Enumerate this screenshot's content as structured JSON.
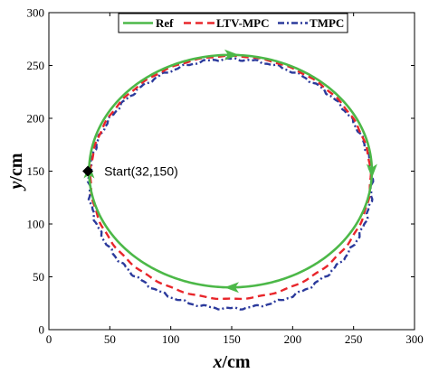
{
  "chart_data": {
    "type": "line",
    "xlabel_var": "x",
    "xlabel_unit": "/cm",
    "ylabel_var": "y",
    "ylabel_unit": "/cm",
    "xlim": [
      0,
      300
    ],
    "ylim": [
      0,
      300
    ],
    "xticks": [
      "0",
      "50",
      "100",
      "150",
      "200",
      "250",
      "300"
    ],
    "yticks": [
      "0",
      "50",
      "100",
      "150",
      "200",
      "250",
      "300"
    ],
    "grid": false,
    "legend_position": "top-center",
    "series": [
      {
        "name": "Ref",
        "color": "#4cb848",
        "style": "solid",
        "shape": "ellipse",
        "center": [
          149,
          150
        ],
        "radii": [
          116,
          110
        ]
      },
      {
        "name": "LTV-MPC",
        "color": "#e8262b",
        "style": "dashed",
        "shape": "ellipse",
        "center": [
          149,
          144
        ],
        "radii": [
          115,
          115
        ]
      },
      {
        "name": "TMPC",
        "color": "#2b3a9c",
        "style": "dashdot",
        "shape": "ellipse",
        "center": [
          149,
          138
        ],
        "radii": [
          116,
          118
        ]
      }
    ],
    "direction_arrows": [
      {
        "x": 150,
        "y": 260,
        "dir": "right"
      },
      {
        "x": 265,
        "y": 150,
        "dir": "down"
      },
      {
        "x": 150,
        "y": 40,
        "dir": "left"
      },
      {
        "x": 33,
        "y": 150,
        "dir": "up"
      }
    ],
    "start_point": {
      "x": 32,
      "y": 150,
      "label": "Start(32,150)"
    }
  }
}
